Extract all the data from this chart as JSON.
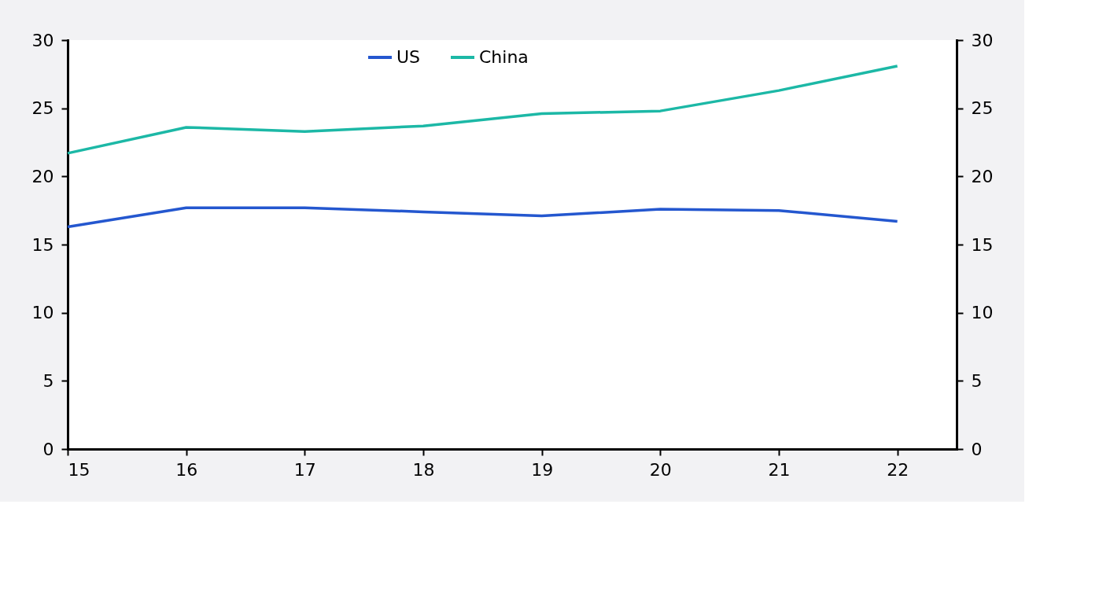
{
  "chart_data": {
    "type": "line",
    "x": [
      15,
      16,
      17,
      18,
      19,
      20,
      21,
      22
    ],
    "xlim": [
      15,
      22.5
    ],
    "xticks": [
      15,
      16,
      17,
      18,
      19,
      20,
      21,
      22
    ],
    "ylim": [
      0,
      30
    ],
    "yticks": [
      0,
      5,
      10,
      15,
      20,
      25,
      30
    ],
    "y2lim": [
      0,
      30
    ],
    "y2ticks": [
      0,
      5,
      10,
      15,
      20,
      25,
      30
    ],
    "series": [
      {
        "name": "US",
        "color": "#2457cf",
        "values": [
          16.3,
          17.7,
          17.7,
          17.4,
          17.1,
          17.6,
          17.5,
          16.7
        ]
      },
      {
        "name": "China",
        "color": "#1cb8a6",
        "values": [
          21.7,
          23.6,
          23.3,
          23.7,
          24.6,
          24.8,
          26.3,
          28.1
        ]
      }
    ],
    "legend": "top",
    "grid": false,
    "marker": "none",
    "line_style": "solid"
  }
}
